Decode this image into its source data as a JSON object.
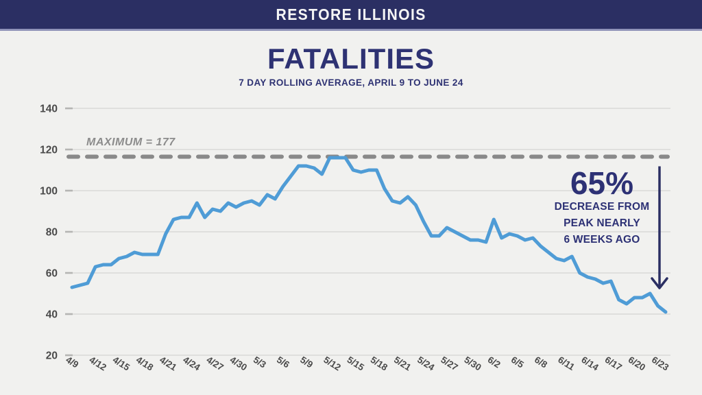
{
  "header": {
    "title": "RESTORE ILLINOIS"
  },
  "page_title": "FATALITIES",
  "page_subtitle": "7 DAY ROLLING AVERAGE, APRIL 9 TO JUNE 24",
  "max_label": "MAXIMUM = 177",
  "annotation": {
    "percent": "65%",
    "lines": [
      "DECREASE FROM",
      "PEAK NEARLY",
      "6 WEEKS AGO"
    ]
  },
  "colors": {
    "background": "#f1f1ef",
    "header_navy": "#2b2f63",
    "text_navy": "#2e3273",
    "line_blue": "#4f9cd6",
    "dash_gray": "#898989",
    "grid_gray": "#d9d9d7",
    "tick_nub_gray": "#b5b5b3",
    "axis_text": "#4a4a4a",
    "max_label_gray": "#8c8c8c"
  },
  "chart_data": {
    "type": "line",
    "title": "FATALITIES",
    "subtitle": "7 DAY ROLLING AVERAGE, APRIL 9 TO JUNE 24",
    "xlabel": "",
    "ylabel": "",
    "ylim": [
      20,
      140
    ],
    "yticks": [
      20,
      40,
      60,
      80,
      100,
      120,
      140
    ],
    "grid": true,
    "legend": false,
    "x_tick_every": 3,
    "max_line_value": 116.5,
    "max_line_label": "MAXIMUM = 177",
    "x": [
      "4/9",
      "4/10",
      "4/11",
      "4/12",
      "4/13",
      "4/14",
      "4/15",
      "4/16",
      "4/17",
      "4/18",
      "4/19",
      "4/20",
      "4/21",
      "4/22",
      "4/23",
      "4/24",
      "4/25",
      "4/26",
      "4/27",
      "4/28",
      "4/29",
      "4/30",
      "5/1",
      "5/2",
      "5/3",
      "5/4",
      "5/5",
      "5/6",
      "5/7",
      "5/8",
      "5/9",
      "5/10",
      "5/11",
      "5/12",
      "5/13",
      "5/14",
      "5/15",
      "5/16",
      "5/17",
      "5/18",
      "5/19",
      "5/20",
      "5/21",
      "5/22",
      "5/23",
      "5/24",
      "5/25",
      "5/26",
      "5/27",
      "5/28",
      "5/29",
      "5/30",
      "5/31",
      "6/1",
      "6/2",
      "6/3",
      "6/4",
      "6/5",
      "6/6",
      "6/7",
      "6/8",
      "6/9",
      "6/10",
      "6/11",
      "6/12",
      "6/13",
      "6/14",
      "6/15",
      "6/16",
      "6/17",
      "6/18",
      "6/19",
      "6/20",
      "6/21",
      "6/22",
      "6/23",
      "6/24"
    ],
    "values": [
      53,
      54,
      55,
      63,
      64,
      64,
      67,
      68,
      70,
      69,
      69,
      69,
      79,
      86,
      87,
      87,
      94,
      87,
      91,
      90,
      94,
      92,
      94,
      95,
      93,
      98,
      96,
      102,
      107,
      112,
      112,
      111,
      108,
      116,
      116,
      116,
      110,
      109,
      110,
      110,
      101,
      95,
      94,
      97,
      93,
      85,
      78,
      78,
      82,
      80,
      78,
      76,
      76,
      75,
      86,
      77,
      79,
      78,
      76,
      77,
      73,
      70,
      67,
      66,
      68,
      60,
      58,
      57,
      55,
      56,
      47,
      45,
      48,
      48,
      50,
      44,
      41
    ]
  }
}
